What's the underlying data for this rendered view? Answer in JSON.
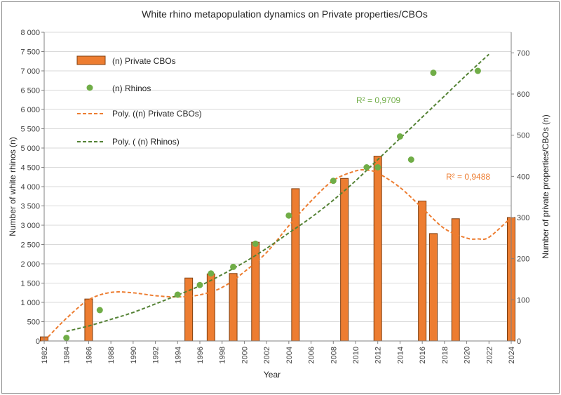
{
  "chart_data": {
    "type": "bar+scatter",
    "title": "White rhino metapopulation dynamics on Private properties/CBOs",
    "xlabel": "Year",
    "ylabel_left": "Number of white rhinos (n)",
    "ylabel_right": "Number of private properties/CBOs (n)",
    "xlim": [
      1982,
      2024
    ],
    "x_ticks": [
      1982,
      1984,
      1986,
      1988,
      1990,
      1992,
      1994,
      1996,
      1998,
      2000,
      2002,
      2004,
      2006,
      2008,
      2010,
      2012,
      2014,
      2016,
      2018,
      2020,
      2022,
      2024
    ],
    "ylim_left": [
      0,
      8000
    ],
    "y_ticks_left": [
      "0",
      "500",
      "1 000",
      "1 500",
      "2 000",
      "2 500",
      "3 000",
      "3 500",
      "4 000",
      "4 500",
      "5 000",
      "5 500",
      "6 000",
      "6 500",
      "7 000",
      "7 500",
      "8 000"
    ],
    "ylim_right": [
      0,
      750
    ],
    "y_ticks_right": [
      "0",
      "100",
      "200",
      "300",
      "400",
      "500",
      "600",
      "700"
    ],
    "series": [
      {
        "name": "(n) Private CBOs",
        "kind": "bar",
        "axis": "right",
        "color": "#ED7D31",
        "edge": "#7f3f10",
        "x": [
          1982,
          1986,
          1995,
          1997,
          1999,
          2001,
          2004.6,
          2009,
          2012,
          2016,
          2017,
          2019,
          2024
        ],
        "values": [
          10,
          102,
          153,
          163,
          164,
          240,
          370,
          395,
          449,
          340,
          261,
          297,
          300
        ]
      },
      {
        "name": "(n) Rhinos",
        "kind": "scatter",
        "axis": "left",
        "color": "#70AD47",
        "x": [
          1984,
          1987,
          1994,
          1996,
          1997,
          1999,
          2001,
          2004,
          2008,
          2011,
          2012,
          2014,
          2015,
          2017,
          2021
        ],
        "values": [
          80,
          800,
          1200,
          1450,
          1750,
          1920,
          2520,
          3250,
          4150,
          4500,
          4500,
          5300,
          4700,
          6950,
          7000
        ]
      }
    ],
    "trendlines": [
      {
        "name": "Poly. ((n) Private CBOs)",
        "axis": "right",
        "color": "#ED7D31",
        "r2_label": "R² = 0,9488",
        "x": [
          1982,
          1984,
          1986,
          1988,
          1990,
          1992,
          1994,
          1996,
          1998,
          2000,
          2002,
          2004,
          2006,
          2008,
          2010,
          2011,
          2012,
          2014,
          2016,
          2018,
          2020,
          2021,
          2022,
          2024
        ],
        "values": [
          0,
          55,
          100,
          118,
          117,
          110,
          107,
          112,
          130,
          168,
          215,
          280,
          340,
          390,
          413,
          415,
          408,
          373,
          323,
          273,
          250,
          248,
          252,
          300
        ]
      },
      {
        "name": "Poly. (   (n) Rhinos)",
        "axis": "left",
        "color": "#548235",
        "r2_label": "R² = 0,9709",
        "x": [
          1984,
          1986,
          1988,
          1990,
          1992,
          1994,
          1996,
          1998,
          2000,
          2002,
          2004,
          2006,
          2008,
          2010,
          2012,
          2014,
          2016,
          2018,
          2020,
          2022
        ],
        "values": [
          250,
          390,
          560,
          740,
          960,
          1190,
          1430,
          1720,
          2040,
          2400,
          2800,
          3200,
          3650,
          4150,
          4700,
          5250,
          5800,
          6350,
          6900,
          7430
        ]
      }
    ],
    "legend": [
      {
        "label": "(n) Private CBOs",
        "kind": "bar"
      },
      {
        "label": "(n) Rhinos",
        "kind": "dot"
      },
      {
        "label": "Poly. ((n) Private CBOs)",
        "kind": "dash-orange"
      },
      {
        "label": "Poly. (   (n) Rhinos)",
        "kind": "dash-green"
      }
    ]
  }
}
